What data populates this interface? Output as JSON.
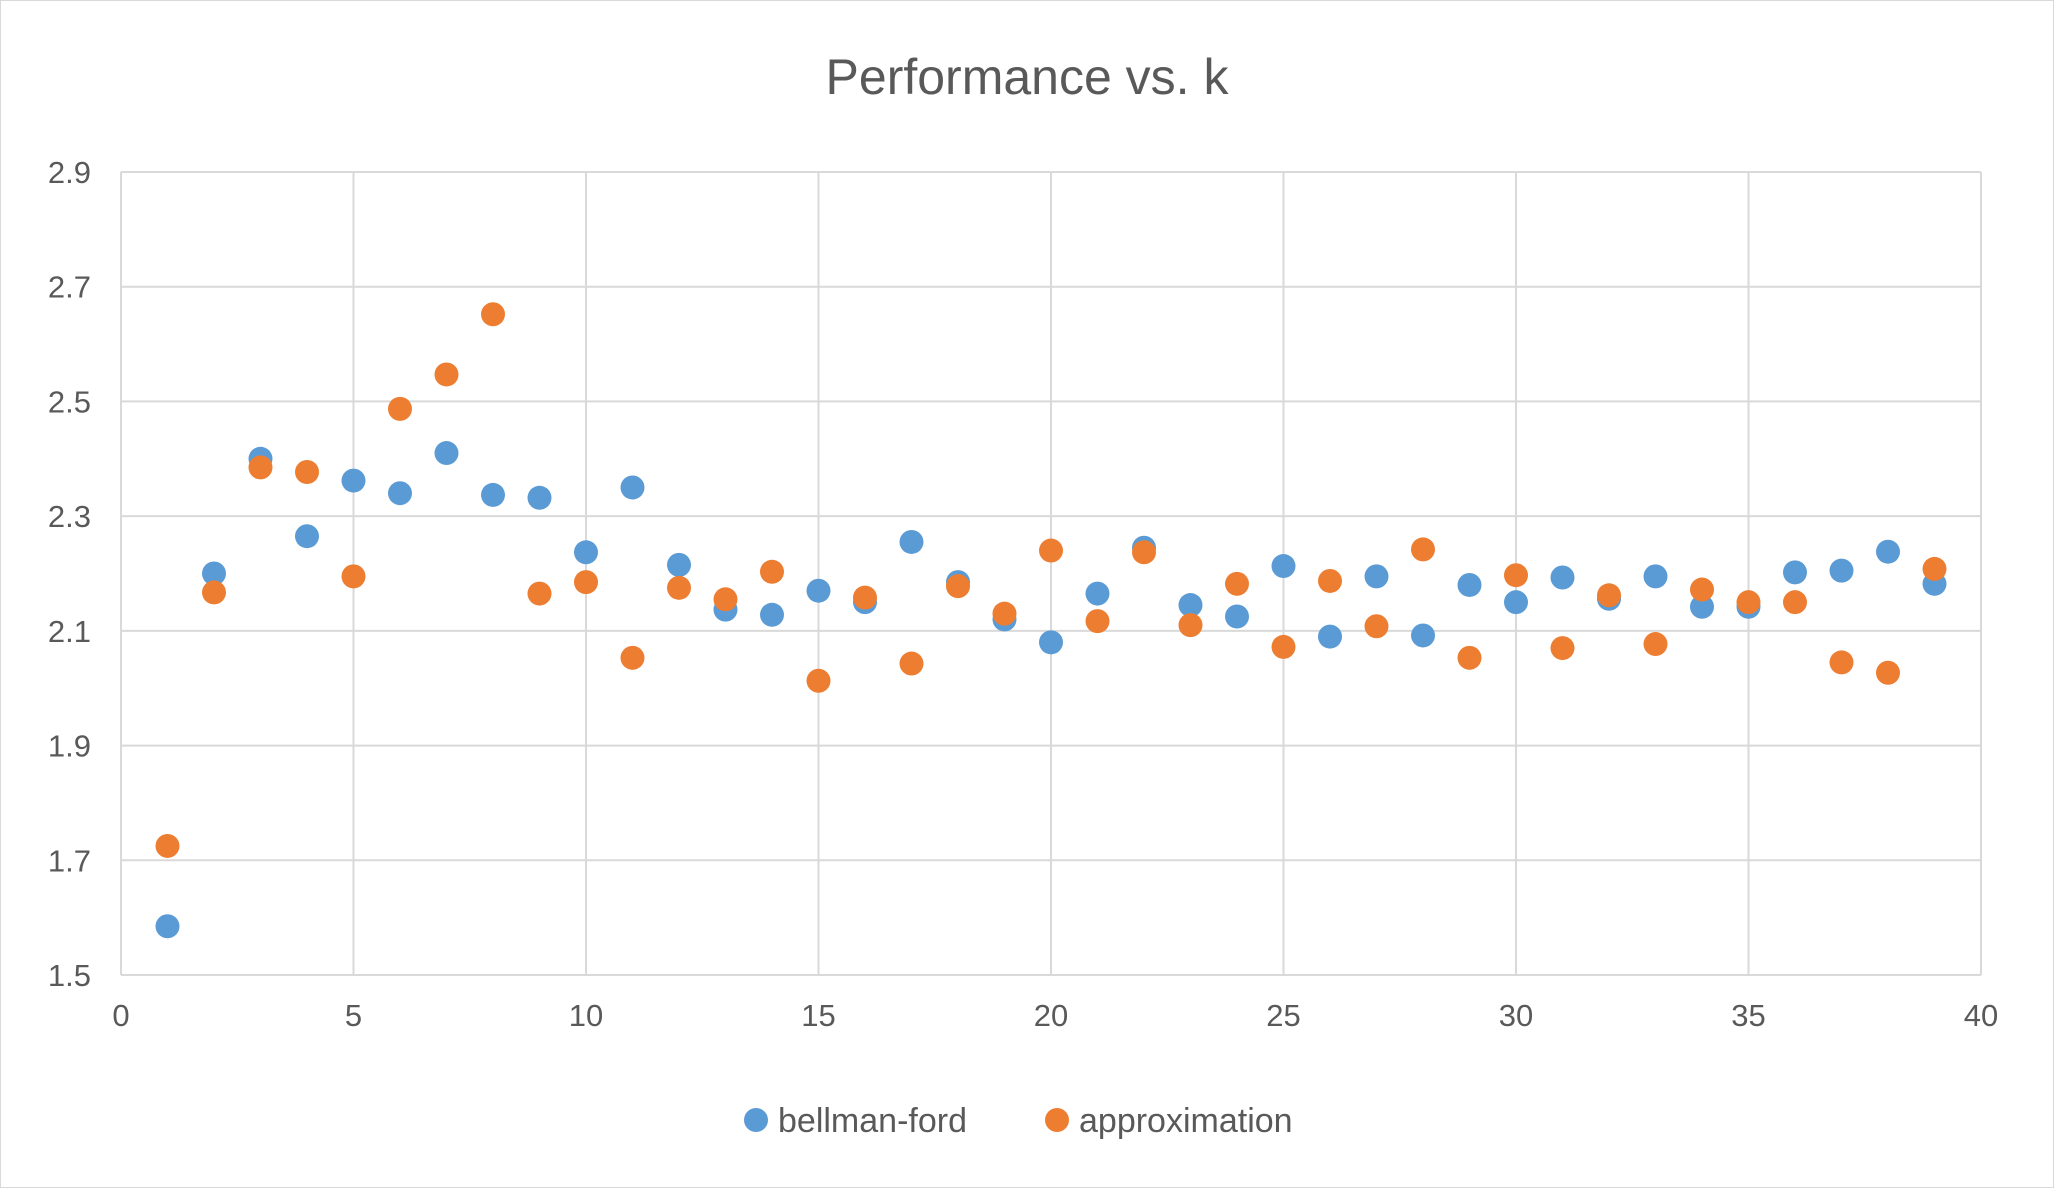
{
  "chart_data": {
    "type": "scatter",
    "title": "Performance vs. k",
    "xlabel": "",
    "ylabel": "",
    "xlim": [
      0,
      40
    ],
    "ylim": [
      1.5,
      2.9
    ],
    "xticks": [
      "0",
      "5",
      "10",
      "15",
      "20",
      "25",
      "30",
      "35",
      "40"
    ],
    "yticks": [
      "2.9",
      "2.7",
      "2.5",
      "2.3",
      "2.1",
      "1.9",
      "1.7",
      "1.5"
    ],
    "grid": true,
    "legend_position": "bottom",
    "series": [
      {
        "name": "bellman-ford",
        "color": "#5B9BD5",
        "x": [
          1,
          2,
          3,
          4,
          5,
          6,
          7,
          8,
          9,
          10,
          11,
          12,
          13,
          14,
          15,
          16,
          17,
          18,
          19,
          20,
          21,
          22,
          23,
          24,
          25,
          26,
          27,
          28,
          29,
          30,
          31,
          32,
          33,
          34,
          35,
          36,
          37,
          38,
          39
        ],
        "y": [
          1.585,
          2.2,
          2.4,
          2.265,
          2.362,
          2.34,
          2.41,
          2.337,
          2.332,
          2.237,
          2.35,
          2.215,
          2.137,
          2.128,
          2.17,
          2.15,
          2.255,
          2.185,
          2.12,
          2.08,
          2.165,
          2.245,
          2.145,
          2.125,
          2.213,
          2.09,
          2.195,
          2.092,
          2.18,
          2.15,
          2.193,
          2.156,
          2.195,
          2.142,
          2.142,
          2.202,
          2.205,
          2.238,
          2.182
        ]
      },
      {
        "name": "approximation",
        "color": "#ED7D31",
        "x": [
          1,
          2,
          3,
          4,
          5,
          6,
          7,
          8,
          9,
          10,
          11,
          12,
          13,
          14,
          15,
          16,
          17,
          18,
          19,
          20,
          21,
          22,
          23,
          24,
          25,
          26,
          27,
          28,
          29,
          30,
          31,
          32,
          33,
          34,
          35,
          36,
          37,
          38,
          39
        ],
        "y": [
          1.725,
          2.167,
          2.385,
          2.377,
          2.195,
          2.487,
          2.547,
          2.652,
          2.165,
          2.185,
          2.053,
          2.175,
          2.155,
          2.203,
          2.013,
          2.158,
          2.043,
          2.178,
          2.13,
          2.24,
          2.117,
          2.237,
          2.11,
          2.182,
          2.072,
          2.187,
          2.108,
          2.242,
          2.053,
          2.197,
          2.07,
          2.162,
          2.077,
          2.172,
          2.15,
          2.15,
          2.045,
          2.027,
          2.208
        ]
      }
    ]
  }
}
